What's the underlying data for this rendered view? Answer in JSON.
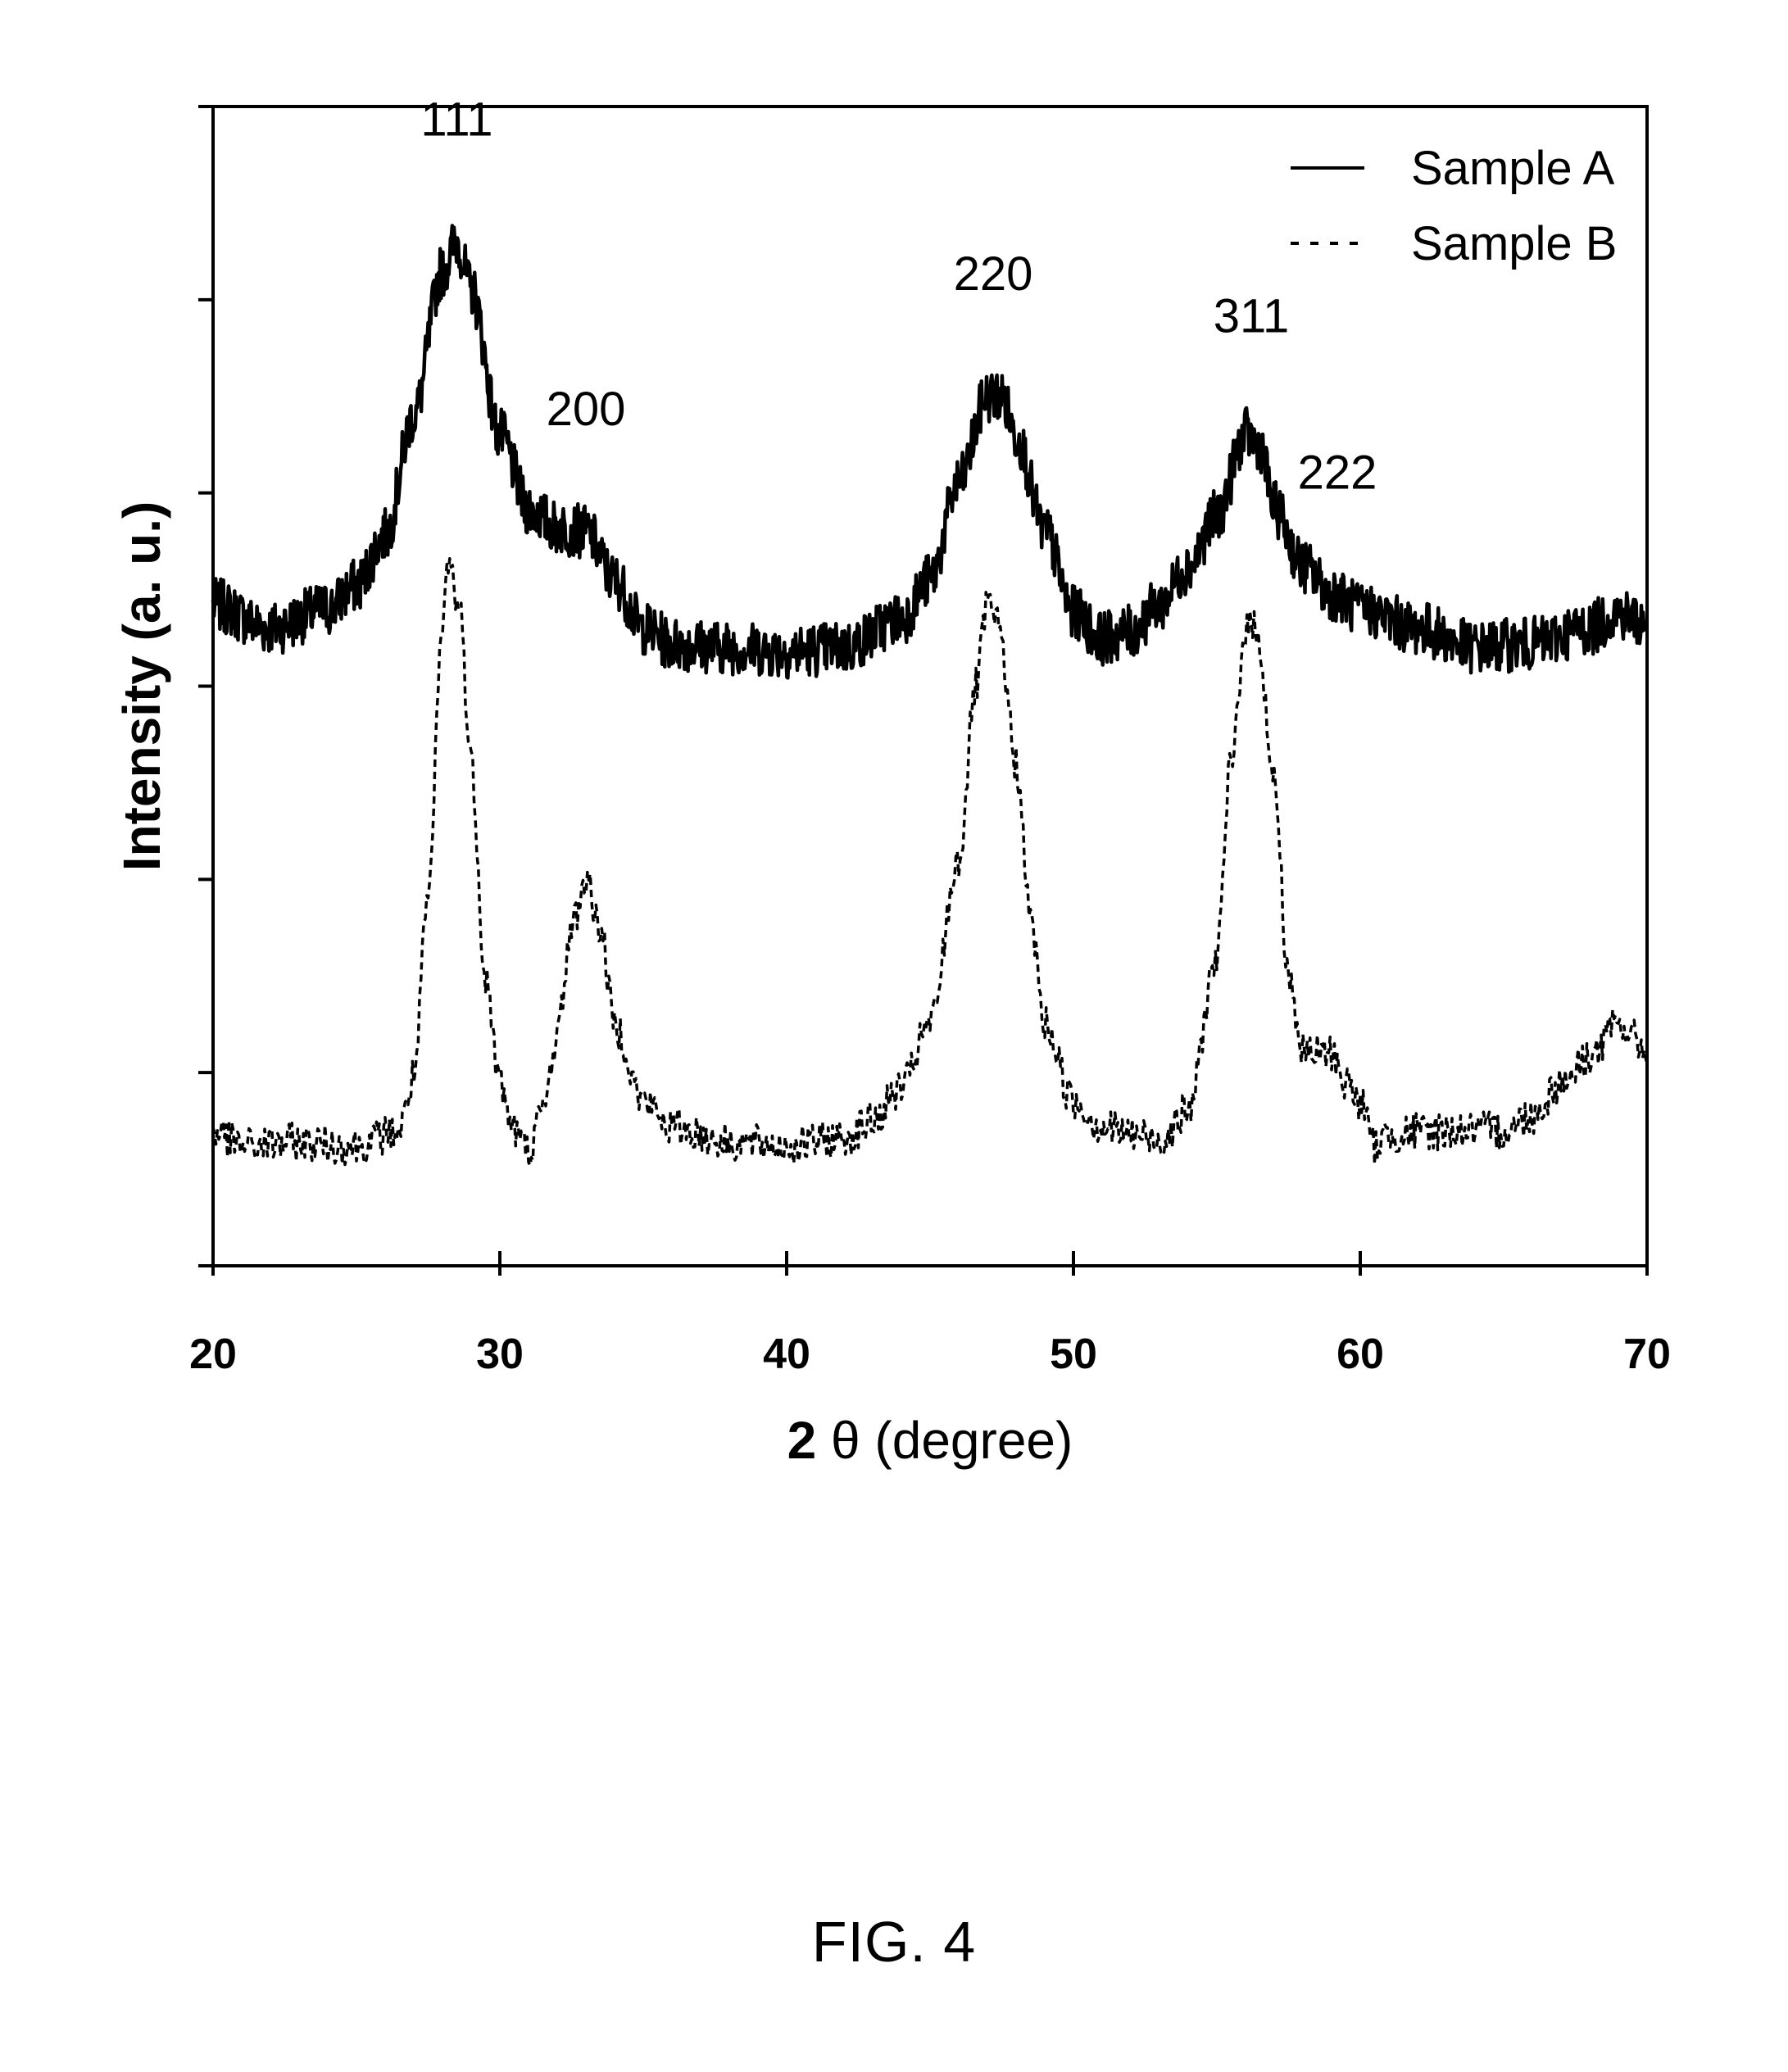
{
  "figure": {
    "caption": "FIG. 4"
  },
  "chart_data": {
    "type": "line",
    "xlabel_prefix": "2",
    "xlabel_rest": " θ (degree)",
    "ylabel": "Intensity (a. u.)",
    "xlim": [
      20,
      70
    ],
    "ylim": [
      0,
      6
    ],
    "x_ticks": [
      20,
      30,
      40,
      50,
      60,
      70
    ],
    "x_tick_labels": [
      "20",
      "30",
      "40",
      "50",
      "60",
      "70"
    ],
    "y_ticks": [
      0,
      1,
      2,
      3,
      4,
      5,
      6
    ],
    "y_tick_labels_shown": false,
    "grid": false,
    "legend_position": "top-right",
    "legend": [
      {
        "label": "Sample A",
        "style": "solid"
      },
      {
        "label": "Sample B",
        "style": "dashed"
      }
    ],
    "series": [
      {
        "name": "Sample A",
        "style": "solid",
        "noise": 0.14,
        "points": [
          [
            20,
            3.42
          ],
          [
            22,
            3.3
          ],
          [
            24,
            3.4
          ],
          [
            25,
            3.52
          ],
          [
            26,
            3.78
          ],
          [
            27,
            4.4
          ],
          [
            28,
            5.15
          ],
          [
            28.5,
            5.3
          ],
          [
            29,
            5.05
          ],
          [
            30,
            4.3
          ],
          [
            31,
            3.92
          ],
          [
            32,
            3.82
          ],
          [
            33,
            3.8
          ],
          [
            34,
            3.55
          ],
          [
            35,
            3.3
          ],
          [
            36,
            3.22
          ],
          [
            38,
            3.2
          ],
          [
            40,
            3.18
          ],
          [
            42,
            3.2
          ],
          [
            44,
            3.35
          ],
          [
            45,
            3.55
          ],
          [
            46,
            4.05
          ],
          [
            47,
            4.5
          ],
          [
            47.5,
            4.5
          ],
          [
            48,
            4.3
          ],
          [
            49,
            3.8
          ],
          [
            50,
            3.38
          ],
          [
            51,
            3.25
          ],
          [
            52,
            3.28
          ],
          [
            53,
            3.42
          ],
          [
            54,
            3.62
          ],
          [
            55,
            3.88
          ],
          [
            56,
            4.3
          ],
          [
            56.5,
            4.25
          ],
          [
            57,
            3.92
          ],
          [
            58,
            3.62
          ],
          [
            59,
            3.48
          ],
          [
            60,
            3.4
          ],
          [
            62,
            3.3
          ],
          [
            64,
            3.2
          ],
          [
            66,
            3.22
          ],
          [
            68,
            3.3
          ],
          [
            69,
            3.38
          ],
          [
            70,
            3.32
          ]
        ],
        "peaks": [
          {
            "label": "111",
            "x": 28.5
          },
          {
            "label": "200",
            "x": 33.0
          },
          {
            "label": "220",
            "x": 47.2
          },
          {
            "label": "311",
            "x": 56.2
          },
          {
            "label": "222",
            "x": 59.2
          }
        ]
      },
      {
        "name": "Sample B",
        "style": "dashed",
        "noise": 0.1,
        "points": [
          [
            20,
            0.7
          ],
          [
            21,
            0.62
          ],
          [
            23,
            0.64
          ],
          [
            25,
            0.62
          ],
          [
            26.5,
            0.7
          ],
          [
            27,
            0.98
          ],
          [
            27.5,
            1.9
          ],
          [
            28,
            3.3
          ],
          [
            28.2,
            3.65
          ],
          [
            28.6,
            3.4
          ],
          [
            29,
            2.6
          ],
          [
            29.5,
            1.5
          ],
          [
            30,
            0.95
          ],
          [
            30.5,
            0.7
          ],
          [
            31,
            0.6
          ],
          [
            31.5,
            0.8
          ],
          [
            32,
            1.2
          ],
          [
            32.5,
            1.75
          ],
          [
            33,
            2.0
          ],
          [
            33.5,
            1.75
          ],
          [
            34,
            1.25
          ],
          [
            35,
            0.85
          ],
          [
            36,
            0.72
          ],
          [
            38,
            0.64
          ],
          [
            40,
            0.62
          ],
          [
            42,
            0.66
          ],
          [
            43,
            0.75
          ],
          [
            44,
            0.92
          ],
          [
            45,
            1.25
          ],
          [
            46,
            2.1
          ],
          [
            46.6,
            3.0
          ],
          [
            47,
            3.42
          ],
          [
            47.4,
            3.3
          ],
          [
            48,
            2.6
          ],
          [
            48.5,
            1.8
          ],
          [
            49,
            1.25
          ],
          [
            50,
            0.85
          ],
          [
            51,
            0.72
          ],
          [
            52,
            0.68
          ],
          [
            53,
            0.65
          ],
          [
            54,
            0.8
          ],
          [
            55,
            1.6
          ],
          [
            55.5,
            2.6
          ],
          [
            56,
            3.3
          ],
          [
            56.4,
            3.3
          ],
          [
            57,
            2.5
          ],
          [
            57.5,
            1.5
          ],
          [
            58,
            1.1
          ],
          [
            59,
            1.1
          ],
          [
            59.5,
            0.95
          ],
          [
            60,
            0.85
          ],
          [
            60.5,
            0.62
          ],
          [
            61,
            0.68
          ],
          [
            63,
            0.7
          ],
          [
            65,
            0.7
          ],
          [
            66,
            0.78
          ],
          [
            67,
            0.95
          ],
          [
            68,
            1.08
          ],
          [
            69,
            1.25
          ],
          [
            70,
            1.12
          ]
        ]
      }
    ]
  }
}
